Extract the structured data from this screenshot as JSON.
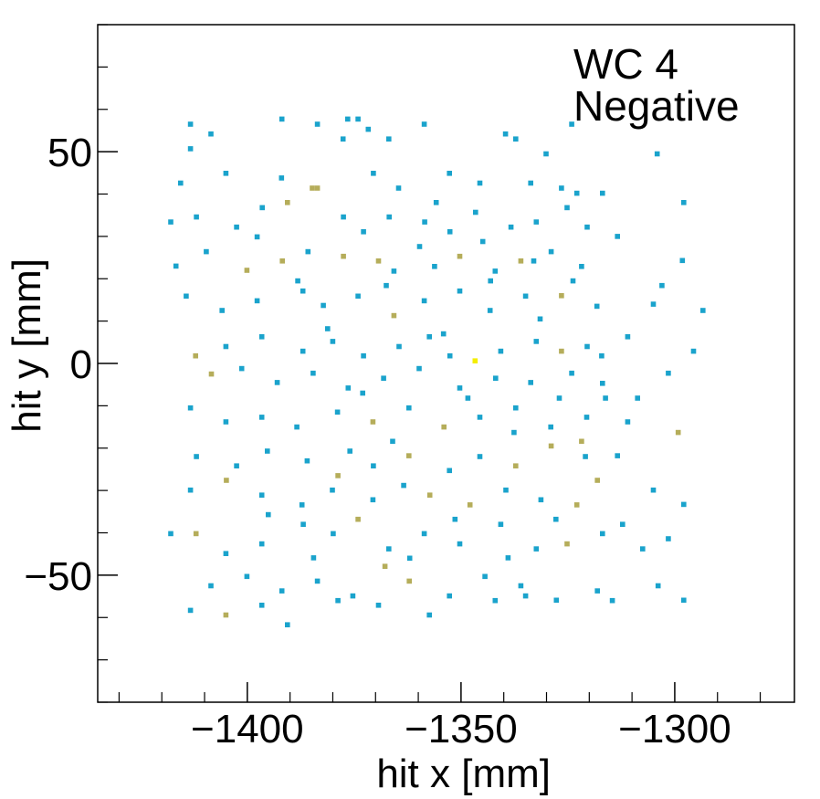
{
  "chart_data": {
    "type": "heatmap",
    "title": "",
    "annotation_lines": [
      "WC 4",
      "Negative"
    ],
    "xlabel": "hit x [mm]",
    "ylabel": "hit y [mm]",
    "xlim": [
      -1435,
      -1272
    ],
    "ylim": [
      -80,
      80
    ],
    "xticks": [
      -1400,
      -1350,
      -1300
    ],
    "yticks": [
      -50,
      0,
      50
    ],
    "xtick_labels": [
      "−1400",
      "−1350",
      "−1300"
    ],
    "ytick_labels": [
      "−50",
      "0",
      "50"
    ],
    "bin_size": 1.2,
    "colors": {
      "low": "#1aa3cc",
      "mid": "#b5ad5a",
      "high": "#f4ee00"
    },
    "points": [
      [
        -1413.3,
        56.5,
        1
      ],
      [
        -1391.9,
        57.7,
        1
      ],
      [
        -1383.6,
        56.5,
        1
      ],
      [
        -1376.5,
        57.7,
        1
      ],
      [
        -1374.1,
        57.7,
        1
      ],
      [
        -1358.6,
        56.5,
        1
      ],
      [
        -1339.6,
        54.2,
        1
      ],
      [
        -1337.2,
        53.0,
        1
      ],
      [
        -1324.1,
        56.5,
        1
      ],
      [
        -1304.1,
        49.5,
        1
      ],
      [
        -1408.5,
        54.2,
        1
      ],
      [
        -1413.3,
        50.7,
        1
      ],
      [
        -1377.6,
        53.0,
        1
      ],
      [
        -1371.7,
        55.3,
        1
      ],
      [
        -1366.9,
        53.0,
        1
      ],
      [
        -1330.1,
        49.5,
        1
      ],
      [
        -1415.6,
        42.6,
        1
      ],
      [
        -1405.0,
        44.9,
        1
      ],
      [
        -1392.0,
        43.8,
        1
      ],
      [
        -1384.8,
        41.4,
        2
      ],
      [
        -1383.6,
        41.4,
        2
      ],
      [
        -1370.5,
        44.9,
        1
      ],
      [
        -1364.6,
        41.4,
        1
      ],
      [
        -1352.7,
        44.9,
        1
      ],
      [
        -1345.6,
        42.6,
        1
      ],
      [
        -1333.7,
        42.6,
        1
      ],
      [
        -1326.5,
        41.4,
        1
      ],
      [
        -1322.9,
        40.2,
        1
      ],
      [
        -1316.9,
        40.2,
        1
      ],
      [
        -1297.9,
        38.0,
        1
      ],
      [
        -1417.9,
        33.4,
        1
      ],
      [
        -1411.9,
        34.6,
        1
      ],
      [
        -1402.5,
        32.2,
        1
      ],
      [
        -1396.5,
        36.8,
        1
      ],
      [
        -1390.6,
        38.0,
        2
      ],
      [
        -1377.5,
        34.6,
        1
      ],
      [
        -1372.8,
        31.1,
        1
      ],
      [
        -1366.8,
        34.6,
        1
      ],
      [
        -1358.5,
        33.4,
        1
      ],
      [
        -1352.6,
        31.1,
        1
      ],
      [
        -1346.6,
        35.7,
        1
      ],
      [
        -1338.3,
        32.2,
        1
      ],
      [
        -1332.4,
        33.4,
        1
      ],
      [
        -1325.2,
        36.8,
        1
      ],
      [
        -1320.5,
        32.2,
        1
      ],
      [
        -1313.4,
        30.0,
        1
      ],
      [
        -1416.7,
        23.0,
        1
      ],
      [
        -1409.6,
        26.4,
        1
      ],
      [
        -1400.1,
        22.0,
        2
      ],
      [
        -1391.8,
        24.2,
        2
      ],
      [
        -1385.8,
        26.4,
        1
      ],
      [
        -1377.5,
        25.3,
        2
      ],
      [
        -1369.3,
        24.2,
        2
      ],
      [
        -1365.7,
        21.8,
        1
      ],
      [
        -1356.2,
        22.9,
        1
      ],
      [
        -1350.3,
        25.3,
        2
      ],
      [
        -1342.0,
        21.8,
        1
      ],
      [
        -1336.0,
        24.2,
        2
      ],
      [
        -1328.9,
        26.4,
        1
      ],
      [
        -1321.8,
        22.9,
        1
      ],
      [
        -1298.2,
        24.3,
        1
      ],
      [
        -1414.3,
        15.9,
        1
      ],
      [
        -1405.9,
        12.5,
        1
      ],
      [
        -1397.7,
        14.8,
        1
      ],
      [
        -1387.0,
        17.1,
        1
      ],
      [
        -1382.2,
        13.7,
        1
      ],
      [
        -1374.1,
        15.9,
        1
      ],
      [
        -1365.7,
        11.3,
        2
      ],
      [
        -1358.6,
        14.8,
        1
      ],
      [
        -1350.3,
        17.1,
        1
      ],
      [
        -1343.2,
        12.5,
        1
      ],
      [
        -1334.9,
        15.9,
        1
      ],
      [
        -1326.5,
        16.0,
        2
      ],
      [
        -1318.2,
        13.5,
        1
      ],
      [
        -1305.0,
        14.0,
        1
      ],
      [
        -1293.4,
        12.5,
        1
      ],
      [
        -1412.1,
        1.8,
        2
      ],
      [
        -1405.0,
        4.0,
        1
      ],
      [
        -1396.6,
        6.3,
        1
      ],
      [
        -1387.0,
        2.9,
        1
      ],
      [
        -1380.0,
        5.2,
        1
      ],
      [
        -1372.8,
        1.8,
        1
      ],
      [
        -1364.5,
        4.0,
        1
      ],
      [
        -1357.4,
        6.3,
        1
      ],
      [
        -1352.6,
        1.8,
        1
      ],
      [
        -1346.7,
        0.6,
        3
      ],
      [
        -1340.7,
        2.9,
        1
      ],
      [
        -1332.4,
        5.2,
        1
      ],
      [
        -1326.5,
        2.9,
        2
      ],
      [
        -1320.5,
        4.0,
        1
      ],
      [
        -1311.0,
        6.3,
        1
      ],
      [
        -1295.6,
        2.9,
        1
      ],
      [
        -1408.4,
        -2.5,
        2
      ],
      [
        -1401.3,
        -1.2,
        1
      ],
      [
        -1393.0,
        -4.5,
        1
      ],
      [
        -1384.6,
        -2.3,
        1
      ],
      [
        -1376.4,
        -5.8,
        1
      ],
      [
        -1368.1,
        -3.5,
        1
      ],
      [
        -1359.8,
        -1.2,
        1
      ],
      [
        -1350.3,
        -5.8,
        1
      ],
      [
        -1341.9,
        -3.5,
        1
      ],
      [
        -1333.7,
        -4.5,
        1
      ],
      [
        -1324.1,
        -2.3,
        1
      ],
      [
        -1316.9,
        -4.7,
        1
      ],
      [
        -1301.5,
        -2.3,
        1
      ],
      [
        -1413.3,
        -10.5,
        1
      ],
      [
        -1405.0,
        -13.8,
        1
      ],
      [
        -1396.6,
        -12.7,
        1
      ],
      [
        -1388.4,
        -15.0,
        1
      ],
      [
        -1378.9,
        -11.5,
        1
      ],
      [
        -1370.6,
        -13.8,
        2
      ],
      [
        -1362.2,
        -10.5,
        1
      ],
      [
        -1354.0,
        -15.0,
        2
      ],
      [
        -1345.6,
        -12.7,
        1
      ],
      [
        -1337.2,
        -10.5,
        1
      ],
      [
        -1329.0,
        -15.0,
        1
      ],
      [
        -1320.6,
        -12.7,
        1
      ],
      [
        -1311.0,
        -13.8,
        1
      ],
      [
        -1299.2,
        -16.3,
        2
      ],
      [
        -1411.9,
        -22.0,
        1
      ],
      [
        -1402.5,
        -24.2,
        1
      ],
      [
        -1395.3,
        -20.7,
        1
      ],
      [
        -1386.0,
        -23.0,
        1
      ],
      [
        -1378.8,
        -26.5,
        2
      ],
      [
        -1370.5,
        -24.2,
        1
      ],
      [
        -1362.2,
        -21.8,
        2
      ],
      [
        -1352.7,
        -25.3,
        1
      ],
      [
        -1345.6,
        -22.0,
        1
      ],
      [
        -1337.2,
        -24.2,
        2
      ],
      [
        -1328.9,
        -19.5,
        2
      ],
      [
        -1321.8,
        -18.4,
        2
      ],
      [
        -1313.4,
        -21.8,
        1
      ],
      [
        -1413.3,
        -29.9,
        1
      ],
      [
        -1404.9,
        -27.6,
        2
      ],
      [
        -1396.6,
        -31.1,
        1
      ],
      [
        -1387.2,
        -33.4,
        1
      ],
      [
        -1380.1,
        -29.9,
        1
      ],
      [
        -1370.6,
        -32.2,
        1
      ],
      [
        -1363.4,
        -28.8,
        1
      ],
      [
        -1357.3,
        -31.1,
        2
      ],
      [
        -1347.9,
        -33.4,
        2
      ],
      [
        -1339.5,
        -29.9,
        1
      ],
      [
        -1331.3,
        -32.2,
        1
      ],
      [
        -1322.9,
        -33.4,
        2
      ],
      [
        -1318.1,
        -27.6,
        2
      ],
      [
        -1305.0,
        -29.9,
        1
      ],
      [
        -1297.9,
        -33.3,
        1
      ],
      [
        -1417.9,
        -40.2,
        1
      ],
      [
        -1412.0,
        -40.2,
        2
      ],
      [
        -1405.0,
        -44.9,
        1
      ],
      [
        -1396.6,
        -42.6,
        1
      ],
      [
        -1386.9,
        -38.0,
        1
      ],
      [
        -1379.9,
        -40.2,
        1
      ],
      [
        -1374.1,
        -36.8,
        2
      ],
      [
        -1366.9,
        -43.8,
        1
      ],
      [
        -1358.6,
        -40.2,
        1
      ],
      [
        -1350.3,
        -42.6,
        1
      ],
      [
        -1340.7,
        -38.0,
        1
      ],
      [
        -1332.4,
        -43.8,
        1
      ],
      [
        -1325.2,
        -42.6,
        2
      ],
      [
        -1316.9,
        -40.2,
        1
      ],
      [
        -1307.5,
        -43.8,
        1
      ],
      [
        -1301.5,
        -41.4,
        1
      ],
      [
        -1408.5,
        -52.5,
        1
      ],
      [
        -1400.1,
        -50.3,
        1
      ],
      [
        -1391.9,
        -53.7,
        1
      ],
      [
        -1383.6,
        -51.4,
        1
      ],
      [
        -1375.3,
        -54.9,
        1
      ],
      [
        -1367.8,
        -47.9,
        2
      ],
      [
        -1362.1,
        -51.4,
        2
      ],
      [
        -1352.7,
        -54.9,
        1
      ],
      [
        -1344.4,
        -50.3,
        1
      ],
      [
        -1336.0,
        -52.5,
        1
      ],
      [
        -1327.7,
        -55.9,
        1
      ],
      [
        -1318.1,
        -53.7,
        1
      ],
      [
        -1303.9,
        -52.5,
        1
      ],
      [
        -1413.3,
        -58.3,
        1
      ],
      [
        -1405.0,
        -59.4,
        2
      ],
      [
        -1396.6,
        -57.1,
        1
      ],
      [
        -1390.6,
        -61.7,
        1
      ],
      [
        -1378.8,
        -56.0,
        1
      ],
      [
        -1369.3,
        -57.1,
        1
      ],
      [
        -1357.4,
        -59.4,
        1
      ],
      [
        -1342.0,
        -56.0,
        1
      ],
      [
        -1334.9,
        -54.9,
        1
      ],
      [
        -1314.6,
        -56.0,
        1
      ],
      [
        -1297.9,
        -55.9,
        1
      ],
      [
        -1397.7,
        29.9,
        1
      ],
      [
        -1388.2,
        19.5,
        1
      ],
      [
        -1381.2,
        8.2,
        1
      ],
      [
        -1373.0,
        -7.0,
        1
      ],
      [
        -1366.0,
        -18.4,
        1
      ],
      [
        -1359.7,
        27.6,
        1
      ],
      [
        -1354.1,
        7.0,
        1
      ],
      [
        -1348.4,
        -8.2,
        1
      ],
      [
        -1343.1,
        19.5,
        1
      ],
      [
        -1337.6,
        -16.3,
        1
      ],
      [
        -1331.5,
        10.5,
        1
      ],
      [
        -1327.0,
        -8.2,
        1
      ],
      [
        -1320.9,
        -22.0,
        1
      ],
      [
        -1316.2,
        -8.2,
        1
      ],
      [
        -1312.2,
        -38.0,
        1
      ],
      [
        -1395.1,
        -35.7,
        1
      ],
      [
        -1384.5,
        -45.9,
        1
      ],
      [
        -1376.0,
        -20.7,
        1
      ],
      [
        -1367.5,
        18.4,
        1
      ],
      [
        -1362.0,
        -46.0,
        1
      ],
      [
        -1355.8,
        38.0,
        1
      ],
      [
        -1351.4,
        -36.8,
        1
      ],
      [
        -1344.9,
        28.8,
        1
      ],
      [
        -1339.0,
        -45.9,
        1
      ],
      [
        -1333.0,
        24.2,
        1
      ],
      [
        -1327.8,
        -36.8,
        1
      ],
      [
        -1323.8,
        19.5,
        1
      ],
      [
        -1317.1,
        1.8,
        1
      ],
      [
        -1308.7,
        -8.2,
        1
      ],
      [
        -1303.0,
        18.4,
        1
      ]
    ]
  }
}
